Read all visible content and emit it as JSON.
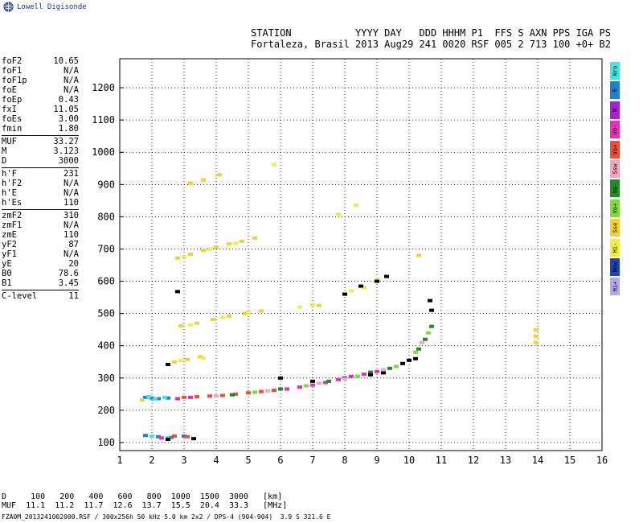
{
  "app": {
    "logo_text": "Lowell Digisonde",
    "header_line1": "STATION           YYYY DAY   DDD HHHM P1  FFS S AXN PPS IGA PS",
    "header_line2": "Fortaleza, Brasil 2013 Aug29 241 0020 RSF 005 2 713 100 +0+ B2"
  },
  "params": [
    {
      "label": "foF2",
      "value": "10.65"
    },
    {
      "label": "foF1",
      "value": "N/A"
    },
    {
      "label": "foF1p",
      "value": "N/A"
    },
    {
      "label": "foE",
      "value": "N/A"
    },
    {
      "label": "foEp",
      "value": "0.43"
    },
    {
      "label": "fxI",
      "value": "11.05"
    },
    {
      "label": "foEs",
      "value": "3.00"
    },
    {
      "label": "fmin",
      "value": "1.80"
    },
    {
      "label": "MUF",
      "value": "33.27"
    },
    {
      "label": "M",
      "value": "3.123"
    },
    {
      "label": "D",
      "value": "3000"
    },
    {
      "label": "h'F",
      "value": "231"
    },
    {
      "label": "h'F2",
      "value": "N/A"
    },
    {
      "label": "h'E",
      "value": "N/A"
    },
    {
      "label": "h'Es",
      "value": "110"
    },
    {
      "label": "zmF2",
      "value": "310"
    },
    {
      "label": "zmF1",
      "value": "N/A"
    },
    {
      "label": "zmE",
      "value": "110"
    },
    {
      "label": "yF2",
      "value": "87"
    },
    {
      "label": "yF1",
      "value": "N/A"
    },
    {
      "label": "yE",
      "value": "20"
    },
    {
      "label": "B0",
      "value": "78.6"
    },
    {
      "label": "B1",
      "value": "3.45"
    },
    {
      "label": "C-level",
      "value": "11"
    }
  ],
  "legend": [
    {
      "label": "Nro",
      "color": "#3ee6e6"
    },
    {
      "label": "E",
      "color": "#1e7fd6"
    },
    {
      "label": "W",
      "color": "#a81ed6"
    },
    {
      "label": "Vo-",
      "color": "#ea2fb4"
    },
    {
      "label": "Vo+",
      "color": "#e8503c"
    },
    {
      "label": "Ssw",
      "color": "#f2a6ba"
    },
    {
      "label": "Vo-",
      "color": "#1f8c2a"
    },
    {
      "label": "Vo+",
      "color": "#7fdc38"
    },
    {
      "label": "Sse",
      "color": "#f4d030"
    },
    {
      "label": "Hi-",
      "color": "#f2ee40"
    },
    {
      "label": "Nnw",
      "color": "#2042b8"
    },
    {
      "label": "Hi+",
      "color": "#b4a8ee"
    }
  ],
  "muf_table": {
    "line1": "D     100   200   400   600   800  1000  1500  3000   [km]",
    "line2": "MUF  11.1  11.2  11.7  12.6  13.7  15.5  20.4  33.3   [MHz]"
  },
  "footer": "FZA0M_2013241002000.RSF / 300x256h 50 kHz 5.0 km 2x2 / DPS-4 (904-904)  3.9 S 321.6 E",
  "chart_data": {
    "type": "scatter",
    "title": "",
    "xlabel": "",
    "ylabel": "",
    "xlim": [
      1,
      16
    ],
    "ylim": [
      75,
      1290
    ],
    "xticks": [
      1,
      2,
      3,
      4,
      5,
      6,
      7,
      8,
      9,
      10,
      11,
      12,
      13,
      14,
      15,
      16
    ],
    "yticks": [
      100,
      200,
      300,
      400,
      500,
      600,
      700,
      800,
      900,
      1000,
      1100,
      1200
    ],
    "grid": true,
    "series": [
      {
        "color": "#1e7fd6",
        "points": [
          [
            1.8,
            240
          ],
          [
            2.0,
            238
          ],
          [
            2.2,
            236
          ],
          [
            2.5,
            238
          ],
          [
            1.8,
            122
          ],
          [
            2.2,
            118
          ],
          [
            2.6,
            116
          ],
          [
            3.0,
            120
          ]
        ]
      },
      {
        "color": "#3ee6e6",
        "points": [
          [
            1.9,
            242
          ],
          [
            2.1,
            235
          ],
          [
            2.4,
            240
          ],
          [
            2.0,
            120
          ],
          [
            2.5,
            115
          ]
        ]
      },
      {
        "color": "#e8503c",
        "points": [
          [
            3.0,
            240
          ],
          [
            3.4,
            242
          ],
          [
            3.8,
            244
          ],
          [
            4.2,
            246
          ],
          [
            4.6,
            250
          ],
          [
            5.0,
            254
          ],
          [
            5.4,
            258
          ],
          [
            5.8,
            262
          ],
          [
            2.7,
            120
          ],
          [
            3.1,
            118
          ]
        ]
      },
      {
        "color": "#ea2fb4",
        "points": [
          [
            2.8,
            236
          ],
          [
            3.2,
            240
          ],
          [
            6.2,
            266
          ],
          [
            6.6,
            272
          ],
          [
            7.0,
            278
          ],
          [
            7.4,
            286
          ],
          [
            7.8,
            295
          ],
          [
            8.2,
            305
          ],
          [
            8.6,
            312
          ],
          [
            9.0,
            320
          ],
          [
            2.3,
            114
          ]
        ]
      },
      {
        "color": "#1f8c2a",
        "points": [
          [
            4.5,
            248
          ],
          [
            6.0,
            266
          ],
          [
            7.5,
            290
          ],
          [
            8.8,
            318
          ],
          [
            9.4,
            330
          ],
          [
            10.3,
            390
          ],
          [
            10.5,
            420
          ],
          [
            10.7,
            460
          ]
        ]
      },
      {
        "color": "#7fdc38",
        "points": [
          [
            5.2,
            256
          ],
          [
            6.8,
            276
          ],
          [
            8.4,
            306
          ],
          [
            9.6,
            336
          ],
          [
            10.2,
            380
          ],
          [
            10.6,
            440
          ]
        ]
      },
      {
        "color": "#f4d030",
        "points": [
          [
            2.8,
            672
          ],
          [
            3.2,
            684
          ],
          [
            3.6,
            696
          ],
          [
            4.0,
            706
          ],
          [
            4.4,
            716
          ],
          [
            4.8,
            724
          ],
          [
            5.2,
            734
          ],
          [
            2.9,
            462
          ],
          [
            3.4,
            470
          ],
          [
            3.9,
            482
          ],
          [
            4.4,
            492
          ],
          [
            4.9,
            500
          ],
          [
            5.4,
            508
          ],
          [
            2.7,
            350
          ],
          [
            3.1,
            358
          ],
          [
            3.5,
            366
          ],
          [
            3.2,
            904
          ],
          [
            3.6,
            914
          ],
          [
            4.1,
            930
          ],
          [
            1.7,
            232
          ],
          [
            10.3,
            680
          ],
          [
            13.95,
            450
          ],
          [
            13.95,
            430
          ],
          [
            13.95,
            410
          ],
          [
            7.2,
            525
          ]
        ]
      },
      {
        "color": "#f2ee40",
        "points": [
          [
            3.0,
            675
          ],
          [
            3.8,
            700
          ],
          [
            4.6,
            718
          ],
          [
            3.2,
            465
          ],
          [
            4.2,
            488
          ],
          [
            5.0,
            503
          ],
          [
            2.9,
            354
          ],
          [
            3.6,
            362
          ],
          [
            5.8,
            962
          ],
          [
            7.8,
            808
          ],
          [
            8.35,
            836
          ],
          [
            6.6,
            520
          ],
          [
            7.0,
            528
          ],
          [
            9.0,
            605
          ],
          [
            8.6,
            580
          ],
          [
            8.2,
            570
          ]
        ]
      },
      {
        "color": "#000000",
        "points": [
          [
            2.5,
            110
          ],
          [
            3.3,
            112
          ],
          [
            2.8,
            568
          ],
          [
            2.5,
            342
          ],
          [
            8.0,
            560
          ],
          [
            8.5,
            585
          ],
          [
            9.0,
            600
          ],
          [
            9.3,
            615
          ],
          [
            9.8,
            345
          ],
          [
            10.0,
            355
          ],
          [
            10.2,
            360
          ],
          [
            10.65,
            540
          ],
          [
            10.7,
            510
          ],
          [
            6.0,
            300
          ],
          [
            7.0,
            290
          ],
          [
            8.0,
            300
          ],
          [
            8.8,
            310
          ],
          [
            9.2,
            316
          ]
        ]
      },
      {
        "color": "#f2a6ba",
        "points": [
          [
            4.0,
            244
          ],
          [
            5.6,
            260
          ],
          [
            7.2,
            284
          ],
          [
            8.0,
            298
          ],
          [
            9.2,
            326
          ],
          [
            10.4,
            410
          ]
        ]
      }
    ],
    "annotations": []
  }
}
